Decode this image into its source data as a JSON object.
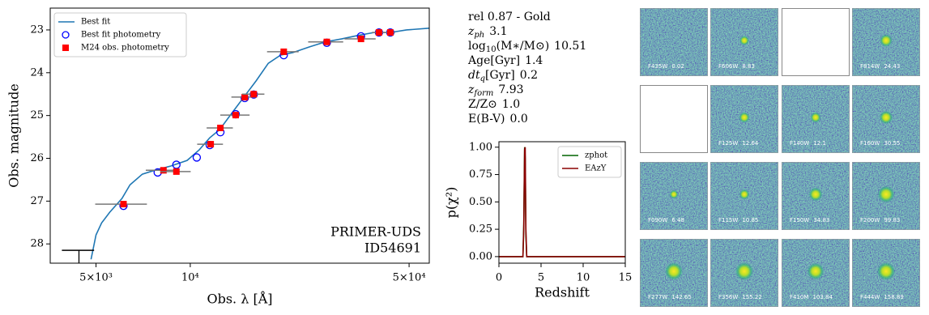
{
  "chart_data": [
    {
      "type": "line",
      "xscale": "log",
      "x_label": "Obs. λ [Å]",
      "y_label": "Obs. magnitude",
      "xlim": [
        3570,
        58000
      ],
      "ylim": [
        28.45,
        22.49
      ],
      "xticks": [
        {
          "value": 5000,
          "label": "5×10³"
        },
        {
          "value": 10000,
          "label": "10⁴"
        },
        {
          "value": 50000,
          "label": "5×10⁴"
        }
      ],
      "yticks": [
        23,
        24,
        25,
        26,
        27,
        28
      ],
      "legend": "upper left",
      "annotations": [
        "PRIMER-UDS",
        "ID54691"
      ],
      "series": [
        {
          "name": "Best fit",
          "color": "#1f77b4",
          "marker": "line",
          "x": [
            4820,
            5000,
            5210,
            5530,
            6050,
            6420,
            7030,
            7690,
            8670,
            9770,
            10690,
            11540,
            12410,
            13560,
            14830,
            16230,
            17750,
            19420,
            21250,
            23930,
            26980,
            30410,
            34280,
            38650,
            43550,
            49090,
            58000
          ],
          "values": [
            28.36,
            27.79,
            27.51,
            27.26,
            26.94,
            26.62,
            26.37,
            26.28,
            26.18,
            26.05,
            25.8,
            25.52,
            25.33,
            24.95,
            24.57,
            24.19,
            23.78,
            23.59,
            23.53,
            23.4,
            23.28,
            23.21,
            23.13,
            23.06,
            23.06,
            23.0,
            22.96
          ]
        },
        {
          "name": "Best fit photometry",
          "color": "#0000ff",
          "marker": "open-circle",
          "x": [
            6120,
            7870,
            9030,
            10490,
            11540,
            12480,
            13970,
            14930,
            15950,
            19890,
            27300,
            35100,
            40060,
            43550
          ],
          "values": [
            27.11,
            26.33,
            26.15,
            25.98,
            25.69,
            25.39,
            24.97,
            24.59,
            24.51,
            23.59,
            23.3,
            23.15,
            23.06,
            23.06
          ]
        },
        {
          "name": "M24 obs. photometry",
          "color": "#ff0000",
          "marker": "square",
          "x": [
            6120,
            8210,
            9030,
            11620,
            12480,
            13970,
            14930,
            15950,
            19890,
            27300,
            35100,
            40060,
            43550
          ],
          "values": [
            27.07,
            26.28,
            26.31,
            25.67,
            25.29,
            24.99,
            24.57,
            24.5,
            23.51,
            23.28,
            23.21,
            23.06,
            23.06
          ],
          "xerr": [
            1150,
            1000,
            1000,
            1100,
            1200,
            1500,
            1400,
            1300,
            2300,
            3500,
            4000,
            2000,
            1500
          ]
        },
        {
          "color": "#000000",
          "marker": "upper-limit",
          "x": [
            4410
          ],
          "values": [
            28.15
          ],
          "xerr": [
            520
          ]
        }
      ]
    },
    {
      "type": "line",
      "x_label": "Redshift",
      "y_label": "p(χ²)",
      "xlim": [
        0,
        15
      ],
      "ylim": [
        -0.06,
        1.05
      ],
      "xticks": [
        0,
        5,
        10,
        15
      ],
      "yticks": [
        {
          "value": 0,
          "label": "0.00"
        },
        {
          "value": 0.25,
          "label": "0.25"
        },
        {
          "value": 0.5,
          "label": "0.50"
        },
        {
          "value": 0.75,
          "label": "0.75"
        },
        {
          "value": 1,
          "label": "1.00"
        }
      ],
      "legend": "upper right",
      "series": [
        {
          "name": "zphot",
          "color": "#006400",
          "marker": "line",
          "x": [
            0,
            2.85,
            2.95,
            3.05,
            3.12,
            3.2,
            3.3,
            15
          ],
          "values": [
            0,
            0,
            0.3,
            1.0,
            0.9,
            0.2,
            0,
            0
          ]
        },
        {
          "name": "EAzY",
          "color": "#8b0000",
          "marker": "line",
          "x": [
            0,
            2.85,
            2.95,
            3.05,
            3.12,
            3.2,
            3.3,
            15
          ],
          "values": [
            0,
            0,
            0.25,
            0.98,
            1.0,
            0.25,
            0,
            0
          ]
        }
      ]
    }
  ],
  "info": [
    {
      "label": "rel 0.87 - Gold"
    },
    {
      "label": "z",
      "style": "italic",
      "sub": "ph",
      "value": "3.1"
    },
    {
      "label": "log",
      "sub": "10",
      "post": "(M∗/M⊙)",
      "value": "10.51"
    },
    {
      "label": "Age[Gyr]",
      "value": "1.4"
    },
    {
      "label": "dt",
      "style": "italic",
      "sub": "q",
      "post": "[Gyr]",
      "value": "0.2"
    },
    {
      "label": "z",
      "style": "italic",
      "sub": "form",
      "value": "7.93"
    },
    {
      "label": "Z/Z⊙",
      "value": "1.0"
    },
    {
      "label": "E(B-V)",
      "value": "0.0"
    }
  ],
  "cutouts": [
    {
      "filter": "F435W",
      "snr": "0.02"
    },
    {
      "filter": "F606W",
      "snr": "8.83"
    },
    null,
    {
      "filter": "F814W",
      "snr": "24.43"
    },
    null,
    {
      "filter": "F125W",
      "snr": "12.64"
    },
    {
      "filter": "F140W",
      "snr": "12.1"
    },
    {
      "filter": "F160W",
      "snr": "30.55"
    },
    {
      "filter": "F090W",
      "snr": "6.48"
    },
    {
      "filter": "F115W",
      "snr": "10.85"
    },
    {
      "filter": "F150W",
      "snr": "34.83"
    },
    {
      "filter": "F200W",
      "snr": "99.83"
    },
    {
      "filter": "F277W",
      "snr": "142.65"
    },
    {
      "filter": "F356W",
      "snr": "155.22"
    },
    {
      "filter": "F410M",
      "snr": "103.84"
    },
    {
      "filter": "F444W",
      "snr": "158.89"
    }
  ]
}
